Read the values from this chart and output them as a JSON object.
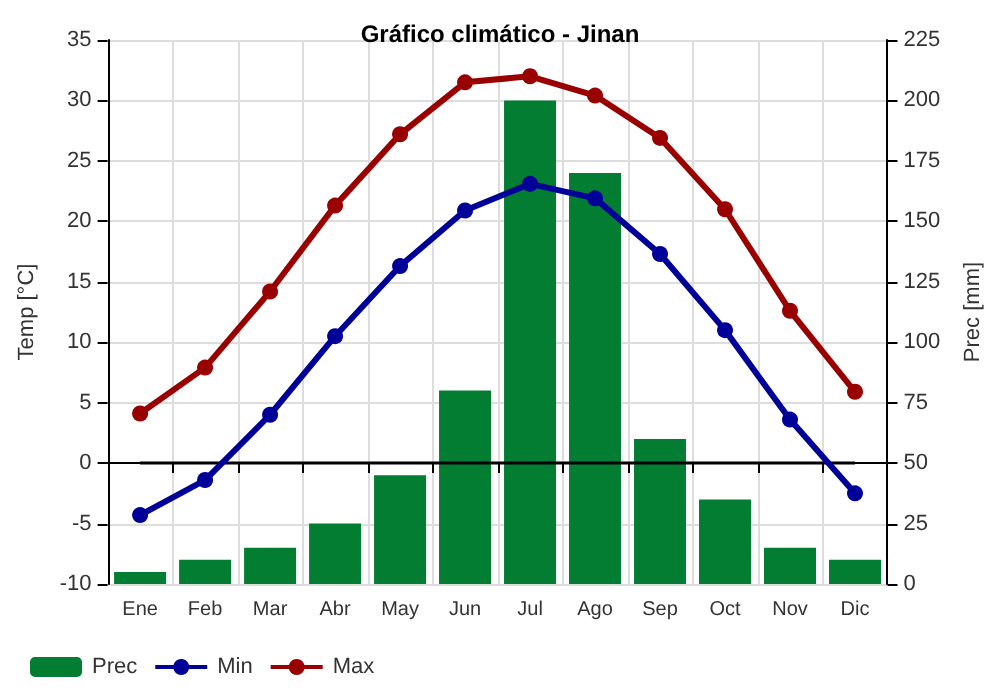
{
  "chart_data": {
    "type": "line",
    "title": "Gráfico climático - Jinan",
    "ylabel": "Temp [°C]",
    "y2label": "Prec [mm]",
    "categories": [
      "Ene",
      "Feb",
      "Mar",
      "Abr",
      "May",
      "Jun",
      "Jul",
      "Ago",
      "Sep",
      "Oct",
      "Nov",
      "Dic"
    ],
    "series": [
      {
        "name": "Prec",
        "type": "bar",
        "axis": "y2",
        "color": "#037d32",
        "values": [
          5,
          10,
          15,
          25,
          45,
          80,
          200,
          170,
          60,
          35,
          15,
          10
        ]
      },
      {
        "name": "Min",
        "color": "#000099",
        "values": [
          -4.3,
          -1.4,
          4,
          10.5,
          16.3,
          20.9,
          23.1,
          21.9,
          17.3,
          11,
          3.6,
          -2.5
        ]
      },
      {
        "name": "Max",
        "color": "#990000",
        "values": [
          4.1,
          7.9,
          14.2,
          21.3,
          27.2,
          31.5,
          32,
          30.4,
          26.9,
          21,
          12.6,
          5.9
        ]
      }
    ],
    "ylim": [
      -10,
      35
    ],
    "yticks": [
      -10,
      -5,
      0,
      5,
      10,
      15,
      20,
      25,
      30,
      35
    ],
    "y2lim": [
      0,
      225
    ],
    "y2ticks": [
      0,
      25,
      50,
      75,
      100,
      125,
      150,
      175,
      200,
      225
    ],
    "ref_lines": [
      {
        "axis": "y",
        "value": 0,
        "color": "#000000"
      }
    ],
    "grid": true,
    "legend": "bottom",
    "marker": "circle",
    "line_style": "solid"
  }
}
